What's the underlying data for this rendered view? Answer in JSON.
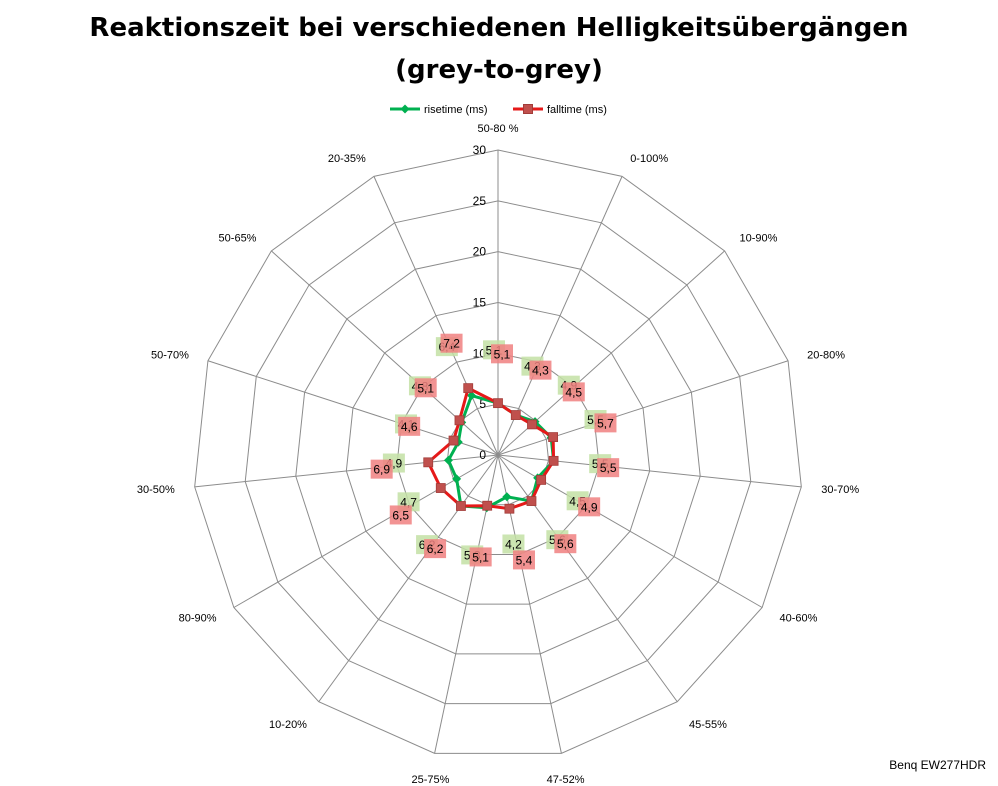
{
  "chart_data": {
    "type": "radar",
    "title": "Reaktionszeit bei verschiedenen Helligkeitsübergängen",
    "subtitle": "(grey-to-grey)",
    "categories": [
      "50-80 %",
      "0-100%",
      "10-90%",
      "20-80%",
      "30-70%",
      "40-60%",
      "45-55%",
      "47-52%",
      "25-75%",
      "10-20%",
      "80-90%",
      "30-50%",
      "50-70%",
      "50-65%",
      "20-35%"
    ],
    "radial_ticks": [
      "0",
      "5",
      "10",
      "15",
      "20",
      "25",
      "30"
    ],
    "rmax": 30,
    "rstep": 5,
    "grid": true,
    "legend": "top",
    "series": [
      {
        "name": "risetime (ms)",
        "color": "#00b050",
        "label_color": "#c3e0a4",
        "values": [
          5.1,
          4.3,
          4.9,
          5.5,
          5.5,
          4.5,
          5.6,
          4.2,
          5.3,
          6.2,
          4.7,
          4.9,
          4.1,
          4.8,
          6.4
        ],
        "labels": [
          "5,1",
          "4,3",
          "4,9",
          "5,5",
          "5,5",
          "4,5",
          "5,6",
          "4,2",
          "5,3",
          "6,2",
          "4,7",
          "4,9",
          "4,1",
          "4,8",
          "6,4"
        ]
      },
      {
        "name": "falltime (ms)",
        "color": "#e61919",
        "label_color": "#f08080",
        "values": [
          5.1,
          4.3,
          4.5,
          5.7,
          5.5,
          4.9,
          5.6,
          5.4,
          5.1,
          6.2,
          6.5,
          6.9,
          4.6,
          5.1,
          7.2
        ],
        "labels": [
          "5,1",
          "4,3",
          "4,5",
          "5,7",
          "5,5",
          "4,9",
          "5,6",
          "5,4",
          "5,1",
          "6,2",
          "6,5",
          "6,9",
          "4,6",
          "5,1",
          "7,2"
        ]
      }
    ]
  },
  "footer": {
    "caption": "Benq EW277HDR"
  }
}
